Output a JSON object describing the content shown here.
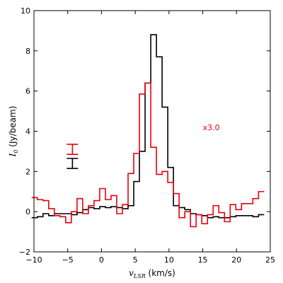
{
  "chart_data": {
    "type": "line",
    "style": "step",
    "title": "",
    "xlabel": "v_LSR (km/s)",
    "xlabel_parts": {
      "main": "v",
      "sub": "LSR",
      "rest": " (km/s)"
    },
    "ylabel": "I_0 (Jy/beam)",
    "ylabel_parts": {
      "main": "I",
      "sub": "0",
      "rest": " (Jy/beam)"
    },
    "xlim": [
      -10,
      25
    ],
    "ylim": [
      -2,
      10
    ],
    "xticks": [
      -10,
      -5,
      0,
      5,
      10,
      15,
      20,
      25
    ],
    "yticks": [
      -2,
      0,
      2,
      4,
      6,
      8,
      10
    ],
    "grid": false,
    "bin_width": 0.84,
    "series": [
      {
        "color": "#000000",
        "x": [
          -9.92,
          -9.08,
          -8.24,
          -7.4,
          -6.56,
          -5.72,
          -4.88,
          -4.04,
          -3.2,
          -2.36,
          -1.52,
          -0.68,
          0.16,
          1.0,
          1.84,
          2.68,
          3.52,
          4.36,
          5.2,
          6.04,
          6.88,
          7.72,
          8.56,
          9.4,
          10.24,
          11.08,
          11.92,
          12.76,
          13.6,
          14.44,
          15.28,
          16.12,
          16.96,
          17.8,
          18.64,
          19.48,
          20.32,
          21.16,
          22.0,
          22.84,
          23.68
        ],
        "values": [
          -0.3,
          -0.25,
          -0.1,
          -0.2,
          -0.1,
          -0.1,
          -0.1,
          -0.15,
          -0.05,
          0.1,
          0.2,
          0.15,
          0.25,
          0.2,
          0.25,
          0.2,
          0.15,
          0.3,
          1.5,
          3.0,
          6.4,
          8.8,
          7.7,
          5.2,
          2.2,
          0.3,
          0.2,
          0.1,
          -0.1,
          -0.15,
          -0.2,
          -0.3,
          -0.25,
          -0.3,
          -0.3,
          -0.25,
          -0.2,
          -0.2,
          -0.2,
          -0.25,
          -0.15
        ]
      },
      {
        "color": "#e8000b",
        "x": [
          -9.92,
          -9.08,
          -8.24,
          -7.4,
          -6.56,
          -5.72,
          -4.88,
          -4.04,
          -3.2,
          -2.36,
          -1.52,
          -0.68,
          0.16,
          1.0,
          1.84,
          2.68,
          3.52,
          4.36,
          5.2,
          6.04,
          6.88,
          7.72,
          8.56,
          9.4,
          10.24,
          11.08,
          11.92,
          12.76,
          13.6,
          14.44,
          15.28,
          16.12,
          16.96,
          17.8,
          18.64,
          19.48,
          20.32,
          21.16,
          22.0,
          22.84,
          23.68
        ],
        "values": [
          0.7,
          0.6,
          0.55,
          0.15,
          -0.2,
          -0.25,
          -0.55,
          0.0,
          0.65,
          -0.1,
          0.3,
          0.55,
          1.15,
          0.6,
          0.8,
          -0.1,
          0.35,
          1.9,
          2.9,
          5.85,
          6.4,
          3.2,
          1.85,
          2.0,
          1.45,
          0.9,
          -0.3,
          0.0,
          -0.75,
          -0.15,
          -0.6,
          -0.15,
          0.3,
          -0.05,
          -0.5,
          0.35,
          0.1,
          0.4,
          0.4,
          0.65,
          1.0
        ]
      }
    ],
    "annotation": {
      "text": "x3.0",
      "x": 15.0,
      "y": 4.05,
      "color": "#e8000b"
    },
    "error_bars": [
      {
        "color": "#e8000b",
        "x": -4.3,
        "y": 3.1,
        "err": 0.25
      },
      {
        "color": "#000000",
        "x": -4.3,
        "y": 2.4,
        "err": 0.25
      }
    ]
  }
}
